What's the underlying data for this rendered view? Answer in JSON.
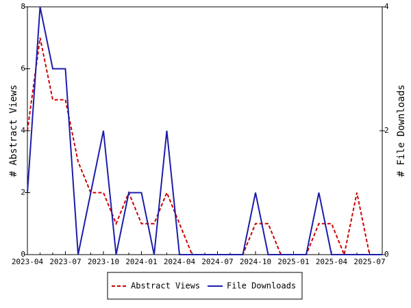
{
  "chart_data": {
    "type": "line",
    "categories": [
      "2023-04",
      null,
      null,
      "2023-07",
      null,
      null,
      "2023-10",
      null,
      null,
      "2024-01",
      null,
      null,
      "2024-04",
      null,
      null,
      "2024-07",
      null,
      null,
      "2024-10",
      null,
      null,
      "2025-01",
      null,
      null,
      "2025-04",
      null,
      null,
      "2025-07",
      null
    ],
    "series": [
      {
        "name": "Abstract Views",
        "color": "#cc0000",
        "dash": true,
        "values": [
          4,
          7,
          5,
          5,
          3,
          2,
          2,
          1,
          2,
          1,
          1,
          2,
          1,
          0,
          0,
          0,
          0,
          0,
          1,
          1,
          0,
          0,
          0,
          1,
          1,
          0,
          2,
          0,
          0
        ]
      },
      {
        "name": "File Downloads",
        "color": "#1c1caa",
        "axis": "y2",
        "values": [
          1,
          4,
          3,
          3,
          0,
          1,
          2,
          0,
          1,
          1,
          0,
          2,
          0,
          0,
          0,
          0,
          0,
          0,
          1,
          0,
          0,
          0,
          0,
          1,
          0,
          0,
          0,
          0,
          0
        ]
      }
    ],
    "ylabel": "# Abstract Views",
    "y2label": "# File Downloads",
    "ylim": [
      0,
      8
    ],
    "yticks": [
      0,
      2,
      4,
      6,
      8
    ],
    "y2lim": [
      0,
      4
    ],
    "y2ticks": [
      0,
      2,
      4
    ],
    "legend": "bottom"
  }
}
